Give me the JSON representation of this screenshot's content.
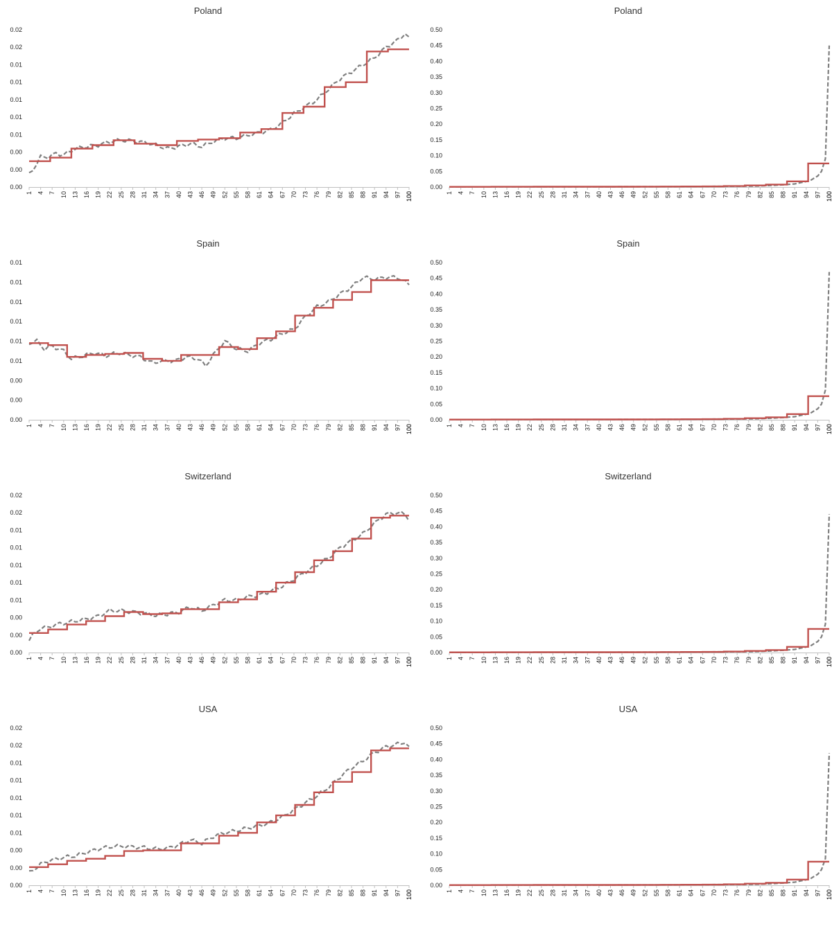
{
  "chart_data": [
    {
      "type": "line",
      "title": "Poland",
      "step_series_color": "#c0504d",
      "raw_series_color": "#7f7f7f",
      "x_range": [
        1,
        100
      ],
      "x_tick_step": 3,
      "yticks": [
        "0.00",
        "0.00",
        "0.00",
        "0.01",
        "0.01",
        "0.01",
        "0.01",
        "0.01",
        "0.02",
        "0.02"
      ],
      "ylim": [
        0,
        0.0225
      ],
      "raw_knots": [
        [
          1,
          0.0018
        ],
        [
          2,
          0.0025
        ],
        [
          4,
          0.0043
        ],
        [
          6,
          0.0043
        ],
        [
          8,
          0.0048
        ],
        [
          10,
          0.0046
        ],
        [
          13,
          0.0055
        ],
        [
          16,
          0.0058
        ],
        [
          19,
          0.006
        ],
        [
          22,
          0.0065
        ],
        [
          25,
          0.0067
        ],
        [
          28,
          0.0066
        ],
        [
          31,
          0.0064
        ],
        [
          34,
          0.006
        ],
        [
          37,
          0.0055
        ],
        [
          40,
          0.0058
        ],
        [
          43,
          0.0062
        ],
        [
          46,
          0.0058
        ],
        [
          49,
          0.0065
        ],
        [
          52,
          0.007
        ],
        [
          55,
          0.007
        ],
        [
          58,
          0.0074
        ],
        [
          61,
          0.0078
        ],
        [
          64,
          0.0082
        ],
        [
          67,
          0.0092
        ],
        [
          70,
          0.0105
        ],
        [
          73,
          0.0115
        ],
        [
          76,
          0.0125
        ],
        [
          79,
          0.014
        ],
        [
          82,
          0.0155
        ],
        [
          85,
          0.0165
        ],
        [
          88,
          0.0175
        ],
        [
          91,
          0.0185
        ],
        [
          94,
          0.02
        ],
        [
          97,
          0.021
        ],
        [
          99,
          0.022
        ],
        [
          100,
          0.0212
        ]
      ],
      "step_levels": [
        0.0037,
        0.0042,
        0.0055,
        0.006,
        0.0067,
        0.0062,
        0.006,
        0.0066,
        0.0068,
        0.007,
        0.0078,
        0.0083,
        0.0106,
        0.0115,
        0.0143,
        0.015,
        0.0194,
        0.0197
      ]
    },
    {
      "type": "line",
      "title": "Poland",
      "step_series_color": "#c0504d",
      "raw_series_color": "#7f7f7f",
      "x_range": [
        1,
        100
      ],
      "x_tick_step": 3,
      "yticks": [
        "0.00",
        "0.05",
        "0.10",
        "0.15",
        "0.20",
        "0.25",
        "0.30",
        "0.35",
        "0.40",
        "0.45",
        "0.50"
      ],
      "ylim": [
        0,
        0.5
      ],
      "raw_knots": [
        [
          1,
          0.0005
        ],
        [
          30,
          0.0008
        ],
        [
          60,
          0.0012
        ],
        [
          80,
          0.003
        ],
        [
          85,
          0.005
        ],
        [
          88,
          0.007
        ],
        [
          91,
          0.01
        ],
        [
          93,
          0.015
        ],
        [
          95,
          0.02
        ],
        [
          96,
          0.028
        ],
        [
          97,
          0.035
        ],
        [
          98,
          0.05
        ],
        [
          99,
          0.09
        ],
        [
          100,
          0.45
        ]
      ],
      "step_levels": [
        0.0006,
        0.0007,
        0.0008,
        0.0009,
        0.001,
        0.001,
        0.0011,
        0.0012,
        0.0012,
        0.0013,
        0.0015,
        0.0018,
        0.002,
        0.003,
        0.005,
        0.008,
        0.018,
        0.075
      ]
    },
    {
      "type": "line",
      "title": "Spain",
      "step_series_color": "#c0504d",
      "raw_series_color": "#7f7f7f",
      "x_range": [
        1,
        100
      ],
      "x_tick_step": 3,
      "yticks": [
        "0.00",
        "0.00",
        "0.00",
        "0.01",
        "0.01",
        "0.01",
        "0.01",
        "0.01",
        "0.01"
      ],
      "ylim": [
        0,
        0.016
      ],
      "raw_knots": [
        [
          1,
          0.0078
        ],
        [
          3,
          0.008
        ],
        [
          5,
          0.0072
        ],
        [
          7,
          0.0075
        ],
        [
          10,
          0.007
        ],
        [
          12,
          0.0062
        ],
        [
          15,
          0.0065
        ],
        [
          18,
          0.0068
        ],
        [
          21,
          0.0065
        ],
        [
          24,
          0.0068
        ],
        [
          27,
          0.0066
        ],
        [
          30,
          0.0064
        ],
        [
          33,
          0.0058
        ],
        [
          36,
          0.006
        ],
        [
          39,
          0.006
        ],
        [
          42,
          0.0064
        ],
        [
          45,
          0.0062
        ],
        [
          47,
          0.0055
        ],
        [
          49,
          0.0066
        ],
        [
          52,
          0.008
        ],
        [
          55,
          0.0072
        ],
        [
          58,
          0.007
        ],
        [
          61,
          0.0078
        ],
        [
          64,
          0.0082
        ],
        [
          67,
          0.0088
        ],
        [
          70,
          0.0092
        ],
        [
          73,
          0.0105
        ],
        [
          76,
          0.0115
        ],
        [
          79,
          0.012
        ],
        [
          82,
          0.0128
        ],
        [
          85,
          0.0135
        ],
        [
          88,
          0.0145
        ],
        [
          91,
          0.0143
        ],
        [
          94,
          0.0145
        ],
        [
          97,
          0.0145
        ],
        [
          99,
          0.014
        ],
        [
          100,
          0.0138
        ]
      ],
      "step_levels": [
        0.0078,
        0.0076,
        0.0064,
        0.0066,
        0.0067,
        0.0068,
        0.0062,
        0.006,
        0.0066,
        0.0066,
        0.0074,
        0.0072,
        0.0083,
        0.009,
        0.0106,
        0.0114,
        0.0122,
        0.013,
        0.0142,
        0.0142
      ]
    },
    {
      "type": "line",
      "title": "Spain",
      "step_series_color": "#c0504d",
      "raw_series_color": "#7f7f7f",
      "x_range": [
        1,
        100
      ],
      "x_tick_step": 3,
      "yticks": [
        "0.00",
        "0.05",
        "0.10",
        "0.15",
        "0.20",
        "0.25",
        "0.30",
        "0.35",
        "0.40",
        "0.45",
        "0.50"
      ],
      "ylim": [
        0,
        0.5
      ],
      "raw_knots": [
        [
          1,
          0.0005
        ],
        [
          30,
          0.0008
        ],
        [
          60,
          0.0012
        ],
        [
          80,
          0.003
        ],
        [
          85,
          0.005
        ],
        [
          88,
          0.007
        ],
        [
          91,
          0.01
        ],
        [
          93,
          0.015
        ],
        [
          95,
          0.02
        ],
        [
          96,
          0.028
        ],
        [
          97,
          0.035
        ],
        [
          98,
          0.05
        ],
        [
          99,
          0.095
        ],
        [
          100,
          0.47
        ]
      ],
      "step_levels": [
        0.0006,
        0.0007,
        0.0008,
        0.0009,
        0.001,
        0.001,
        0.0011,
        0.0012,
        0.0012,
        0.0013,
        0.0015,
        0.0018,
        0.002,
        0.003,
        0.005,
        0.008,
        0.018,
        0.075
      ]
    },
    {
      "type": "line",
      "title": "Switzerland",
      "step_series_color": "#c0504d",
      "raw_series_color": "#7f7f7f",
      "x_range": [
        1,
        100
      ],
      "x_tick_step": 3,
      "yticks": [
        "0.00",
        "0.00",
        "0.00",
        "0.01",
        "0.01",
        "0.01",
        "0.01",
        "0.01",
        "0.02",
        "0.02"
      ],
      "ylim": [
        0,
        0.0225
      ],
      "raw_knots": [
        [
          1,
          0.0018
        ],
        [
          2,
          0.0025
        ],
        [
          4,
          0.0035
        ],
        [
          6,
          0.0036
        ],
        [
          8,
          0.004
        ],
        [
          10,
          0.0042
        ],
        [
          13,
          0.0045
        ],
        [
          16,
          0.0048
        ],
        [
          19,
          0.0052
        ],
        [
          22,
          0.006
        ],
        [
          25,
          0.006
        ],
        [
          28,
          0.0058
        ],
        [
          31,
          0.0056
        ],
        [
          34,
          0.0053
        ],
        [
          37,
          0.0055
        ],
        [
          40,
          0.0058
        ],
        [
          43,
          0.0065
        ],
        [
          46,
          0.006
        ],
        [
          49,
          0.0068
        ],
        [
          52,
          0.0075
        ],
        [
          55,
          0.0075
        ],
        [
          58,
          0.008
        ],
        [
          61,
          0.0082
        ],
        [
          64,
          0.0088
        ],
        [
          67,
          0.0095
        ],
        [
          70,
          0.0105
        ],
        [
          73,
          0.0115
        ],
        [
          76,
          0.0125
        ],
        [
          79,
          0.0135
        ],
        [
          82,
          0.015
        ],
        [
          85,
          0.016
        ],
        [
          88,
          0.017
        ],
        [
          91,
          0.0185
        ],
        [
          94,
          0.0198
        ],
        [
          97,
          0.02
        ],
        [
          99,
          0.0198
        ],
        [
          100,
          0.019
        ]
      ],
      "step_levels": [
        0.0028,
        0.0033,
        0.004,
        0.0045,
        0.0052,
        0.0058,
        0.0055,
        0.0056,
        0.0062,
        0.0062,
        0.0072,
        0.0076,
        0.0087,
        0.01,
        0.0115,
        0.0132,
        0.0145,
        0.0163,
        0.0193,
        0.0196
      ]
    },
    {
      "type": "line",
      "title": "Switzerland",
      "step_series_color": "#c0504d",
      "raw_series_color": "#7f7f7f",
      "x_range": [
        1,
        100
      ],
      "x_tick_step": 3,
      "yticks": [
        "0.00",
        "0.05",
        "0.10",
        "0.15",
        "0.20",
        "0.25",
        "0.30",
        "0.35",
        "0.40",
        "0.45",
        "0.50"
      ],
      "ylim": [
        0,
        0.5
      ],
      "raw_knots": [
        [
          1,
          0.0005
        ],
        [
          30,
          0.0008
        ],
        [
          60,
          0.0012
        ],
        [
          80,
          0.003
        ],
        [
          85,
          0.005
        ],
        [
          88,
          0.007
        ],
        [
          91,
          0.01
        ],
        [
          93,
          0.015
        ],
        [
          95,
          0.02
        ],
        [
          96,
          0.028
        ],
        [
          97,
          0.035
        ],
        [
          98,
          0.05
        ],
        [
          99,
          0.09
        ],
        [
          100,
          0.44
        ]
      ],
      "step_levels": [
        0.0006,
        0.0007,
        0.0008,
        0.0009,
        0.001,
        0.001,
        0.0011,
        0.0012,
        0.0012,
        0.0013,
        0.0015,
        0.0018,
        0.002,
        0.003,
        0.005,
        0.008,
        0.018,
        0.075
      ]
    },
    {
      "type": "line",
      "title": "USA",
      "step_series_color": "#c0504d",
      "raw_series_color": "#7f7f7f",
      "x_range": [
        1,
        100
      ],
      "x_tick_step": 3,
      "yticks": [
        "0.00",
        "0.00",
        "0.00",
        "0.01",
        "0.01",
        "0.01",
        "0.01",
        "0.01",
        "0.02",
        "0.02"
      ],
      "ylim": [
        0,
        0.0225
      ],
      "raw_knots": [
        [
          1,
          0.0018
        ],
        [
          2,
          0.0022
        ],
        [
          4,
          0.003
        ],
        [
          6,
          0.0035
        ],
        [
          8,
          0.0037
        ],
        [
          10,
          0.004
        ],
        [
          13,
          0.0042
        ],
        [
          16,
          0.0047
        ],
        [
          19,
          0.0052
        ],
        [
          22,
          0.0055
        ],
        [
          25,
          0.0056
        ],
        [
          28,
          0.0055
        ],
        [
          31,
          0.0054
        ],
        [
          34,
          0.0052
        ],
        [
          37,
          0.0053
        ],
        [
          40,
          0.0058
        ],
        [
          43,
          0.0065
        ],
        [
          46,
          0.006
        ],
        [
          49,
          0.007
        ],
        [
          52,
          0.0075
        ],
        [
          55,
          0.0078
        ],
        [
          58,
          0.0082
        ],
        [
          61,
          0.0085
        ],
        [
          64,
          0.009
        ],
        [
          67,
          0.0098
        ],
        [
          70,
          0.0108
        ],
        [
          73,
          0.0118
        ],
        [
          76,
          0.0128
        ],
        [
          79,
          0.014
        ],
        [
          82,
          0.0155
        ],
        [
          85,
          0.0168
        ],
        [
          88,
          0.0178
        ],
        [
          91,
          0.019
        ],
        [
          94,
          0.0198
        ],
        [
          97,
          0.0202
        ],
        [
          99,
          0.0205
        ],
        [
          100,
          0.0196
        ]
      ],
      "step_levels": [
        0.0026,
        0.003,
        0.0035,
        0.0038,
        0.0042,
        0.0049,
        0.005,
        0.005,
        0.006,
        0.006,
        0.0071,
        0.0075,
        0.009,
        0.01,
        0.0115,
        0.0133,
        0.0148,
        0.0162,
        0.0193,
        0.0196
      ]
    },
    {
      "type": "line",
      "title": "USA",
      "step_series_color": "#c0504d",
      "raw_series_color": "#7f7f7f",
      "x_range": [
        1,
        100
      ],
      "x_tick_step": 3,
      "yticks": [
        "0.00",
        "0.05",
        "0.10",
        "0.15",
        "0.20",
        "0.25",
        "0.30",
        "0.35",
        "0.40",
        "0.45",
        "0.50"
      ],
      "ylim": [
        0,
        0.5
      ],
      "raw_knots": [
        [
          1,
          0.0005
        ],
        [
          30,
          0.0008
        ],
        [
          60,
          0.0012
        ],
        [
          80,
          0.003
        ],
        [
          85,
          0.005
        ],
        [
          88,
          0.007
        ],
        [
          91,
          0.01
        ],
        [
          93,
          0.015
        ],
        [
          95,
          0.02
        ],
        [
          96,
          0.028
        ],
        [
          97,
          0.035
        ],
        [
          98,
          0.05
        ],
        [
          99,
          0.085
        ],
        [
          100,
          0.42
        ]
      ],
      "step_levels": [
        0.0006,
        0.0007,
        0.0008,
        0.0009,
        0.001,
        0.001,
        0.0011,
        0.0012,
        0.0012,
        0.0013,
        0.0015,
        0.0018,
        0.002,
        0.003,
        0.005,
        0.008,
        0.018,
        0.075
      ]
    }
  ]
}
